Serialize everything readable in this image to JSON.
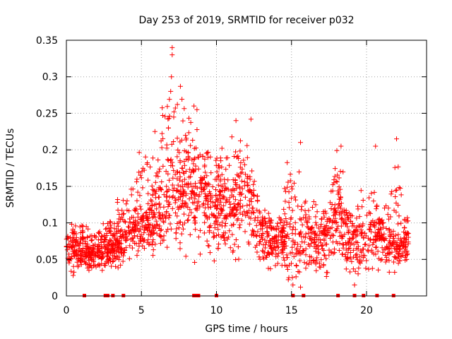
{
  "chart_data": {
    "type": "scatter",
    "title": "Day 253 of 2019, SRMTID for receiver p032",
    "xlabel": "GPS time / hours",
    "ylabel": "SRMTID / TECUs",
    "xlim": [
      0,
      24
    ],
    "ylim": [
      0,
      0.35
    ],
    "grid": true,
    "marker": "+",
    "color": "#ff0000",
    "x_ticks": [
      0,
      5,
      10,
      15,
      20
    ],
    "x_tick_labels": [
      "0",
      "5",
      "10",
      "15",
      "20"
    ],
    "y_ticks": [
      0,
      0.05,
      0.1,
      0.15,
      0.2,
      0.25,
      0.3,
      0.35
    ],
    "y_tick_labels": [
      "0",
      "0.05",
      "0.1",
      "0.15",
      "0.2",
      "0.25",
      "0.3",
      "0.35"
    ],
    "zero_markers_x": [
      1.2,
      2.6,
      2.75,
      3.1,
      3.8,
      8.5,
      8.65,
      8.8,
      10.0,
      15.1,
      15.8,
      18.1,
      19.2,
      19.8,
      20.7,
      21.8
    ],
    "series": [
      {
        "name": "SRMTID",
        "envelope": {
          "x": [
            0,
            1,
            2,
            3,
            4,
            5,
            6,
            7,
            8,
            9,
            10,
            11,
            12,
            13,
            14,
            15,
            16,
            17,
            18,
            19,
            20,
            21,
            22,
            22.8
          ],
          "base": [
            0.06,
            0.055,
            0.055,
            0.06,
            0.08,
            0.09,
            0.11,
            0.13,
            0.14,
            0.13,
            0.12,
            0.11,
            0.13,
            0.08,
            0.07,
            0.07,
            0.07,
            0.065,
            0.11,
            0.07,
            0.075,
            0.075,
            0.06,
            0.07
          ],
          "top": [
            0.1,
            0.1,
            0.09,
            0.12,
            0.15,
            0.21,
            0.22,
            0.34,
            0.26,
            0.22,
            0.2,
            0.23,
            0.24,
            0.12,
            0.12,
            0.21,
            0.14,
            0.12,
            0.21,
            0.12,
            0.2,
            0.12,
            0.21,
            0.1
          ],
          "bottom": [
            0.02,
            0.03,
            0.03,
            0.03,
            0.04,
            0.05,
            0.05,
            0.06,
            0.05,
            0.04,
            0.04,
            0.03,
            0.05,
            0.03,
            0.03,
            0.01,
            0.02,
            0.02,
            0.04,
            0.02,
            0.02,
            0.03,
            0.03,
            0.04
          ]
        },
        "peaks": [
          {
            "x": 7.05,
            "y": 0.34
          },
          {
            "x": 7.05,
            "y": 0.33
          },
          {
            "x": 7.0,
            "y": 0.3
          },
          {
            "x": 6.95,
            "y": 0.28
          },
          {
            "x": 8.5,
            "y": 0.26
          },
          {
            "x": 8.7,
            "y": 0.255
          },
          {
            "x": 12.3,
            "y": 0.242
          },
          {
            "x": 11.3,
            "y": 0.24
          },
          {
            "x": 15.6,
            "y": 0.21
          },
          {
            "x": 18.3,
            "y": 0.205
          },
          {
            "x": 20.6,
            "y": 0.205
          },
          {
            "x": 22.0,
            "y": 0.215
          },
          {
            "x": 5.9,
            "y": 0.225
          },
          {
            "x": 6.8,
            "y": 0.23
          },
          {
            "x": 15.6,
            "y": 0.012
          },
          {
            "x": 19.2,
            "y": 0.015
          }
        ]
      }
    ]
  }
}
